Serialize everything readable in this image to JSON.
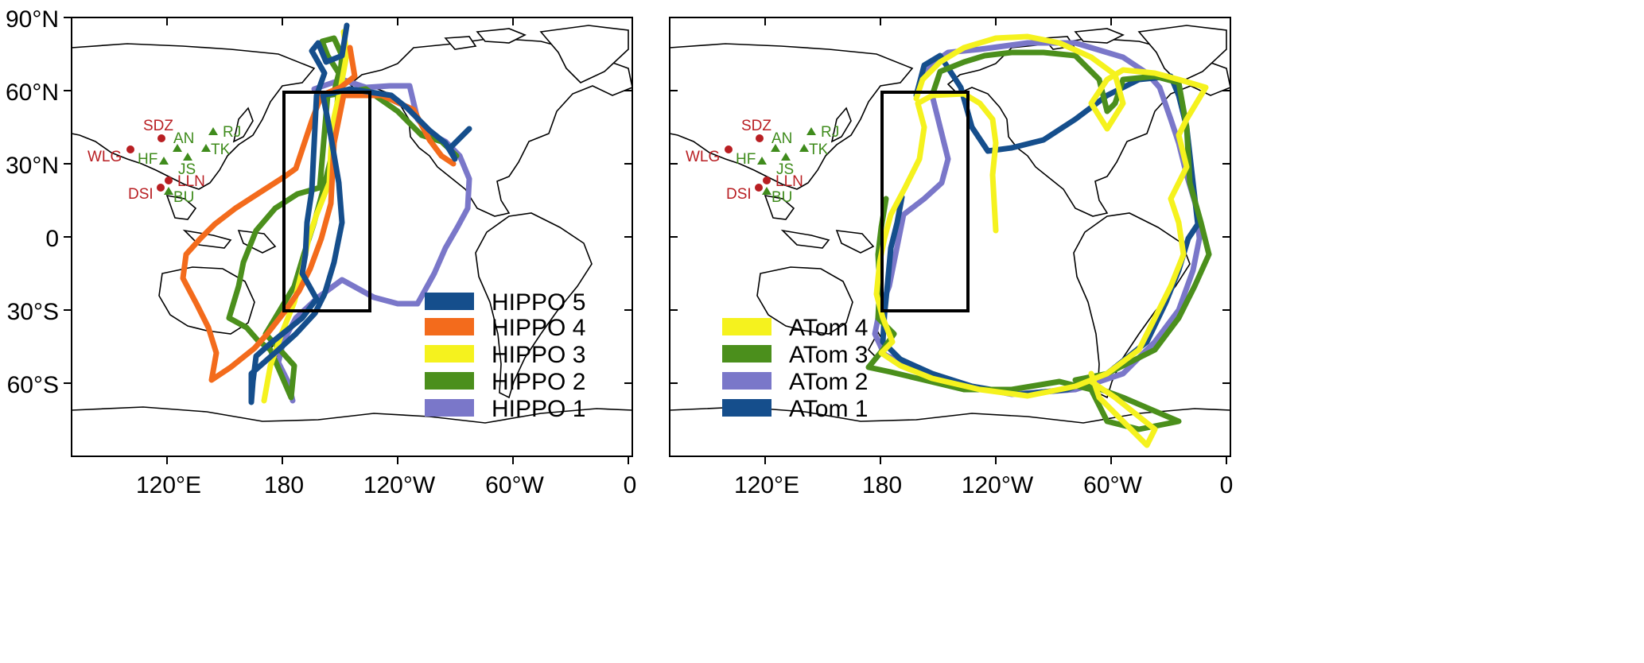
{
  "y_axis_labels": [
    "90°N",
    "60°N",
    "30°N",
    "0",
    "30°S",
    "60°S"
  ],
  "x_axis_labels": [
    "120°E",
    "180",
    "120°W",
    "60°W",
    "0"
  ],
  "colors": {
    "red": "#b81e22",
    "green": "#3f8b1c",
    "dark_blue": "#154e8c",
    "orange": "#f36b1c",
    "yellow": "#f5f21e",
    "light_green": "#4b8f1c",
    "lavender": "#7a77c9"
  },
  "red_stations": [
    "SDZ",
    "WLG",
    "LLN",
    "DSI"
  ],
  "green_stations": [
    "AN",
    "RJ",
    "HF",
    "TK",
    "JS",
    "BU"
  ],
  "left_panel": {
    "legend": [
      {
        "label": "HIPPO 5",
        "color": "#154e8c"
      },
      {
        "label": "HIPPO 4",
        "color": "#f36b1c"
      },
      {
        "label": "HIPPO 3",
        "color": "#f5f21e"
      },
      {
        "label": "HIPPO 2",
        "color": "#4b8f1c"
      },
      {
        "label": "HIPPO 1",
        "color": "#7a77c9"
      }
    ]
  },
  "right_panel": {
    "legend": [
      {
        "label": "ATom 4",
        "color": "#f5f21e"
      },
      {
        "label": "ATom 3",
        "color": "#4b8f1c"
      },
      {
        "label": "ATom 2",
        "color": "#7a77c9"
      },
      {
        "label": "ATom 1",
        "color": "#154e8c"
      }
    ]
  }
}
